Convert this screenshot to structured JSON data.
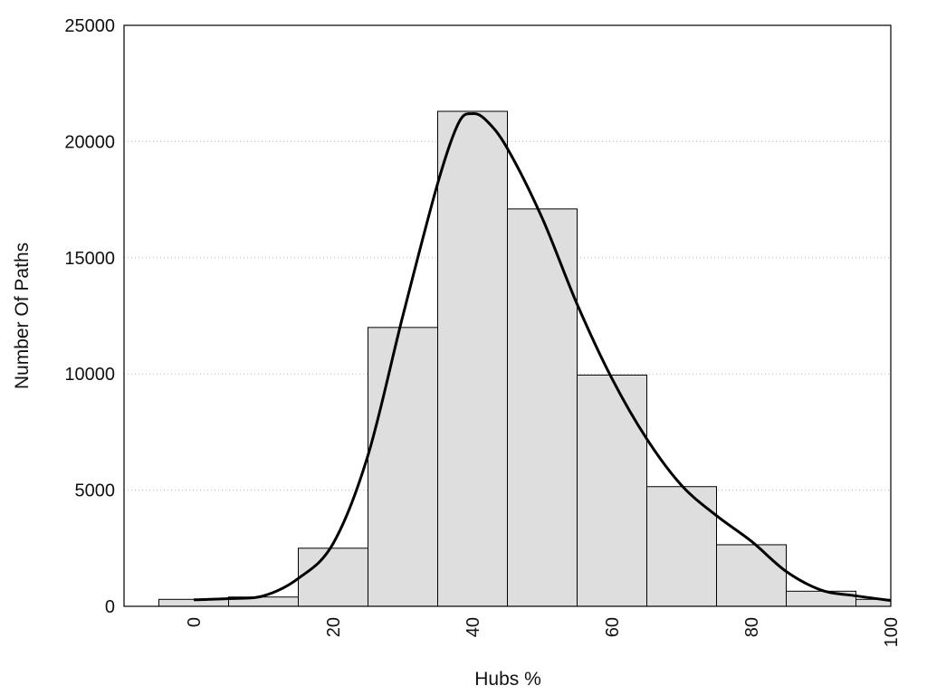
{
  "chart_data": {
    "type": "bar",
    "title": "",
    "xlabel": "Hubs %",
    "ylabel": "Number Of Paths",
    "xlim": [
      -10,
      100
    ],
    "ylim": [
      0,
      25000
    ],
    "x_ticks": [
      0,
      20,
      40,
      60,
      80,
      100
    ],
    "y_ticks": [
      0,
      5000,
      10000,
      15000,
      20000,
      25000
    ],
    "grid": "horizontal dotted",
    "bin_width": 10,
    "bin_centers": [
      0,
      10,
      20,
      30,
      40,
      50,
      60,
      70,
      80,
      90,
      100
    ],
    "values": [
      300,
      400,
      2500,
      12000,
      21300,
      17100,
      9950,
      5150,
      2650,
      650,
      300
    ],
    "density_curve": {
      "x": [
        0,
        5,
        10,
        15,
        20,
        25,
        30,
        35,
        38,
        40,
        42,
        45,
        50,
        55,
        60,
        65,
        70,
        75,
        80,
        85,
        90,
        95,
        100
      ],
      "y": [
        280,
        330,
        450,
        1200,
        2700,
        6500,
        12500,
        18200,
        20800,
        21200,
        20900,
        19700,
        16700,
        13000,
        9800,
        7200,
        5200,
        3900,
        2800,
        1500,
        700,
        450,
        250
      ]
    },
    "colors": {
      "bar_fill": "#dedede",
      "bar_stroke": "#000000",
      "curve": "#000000"
    }
  }
}
